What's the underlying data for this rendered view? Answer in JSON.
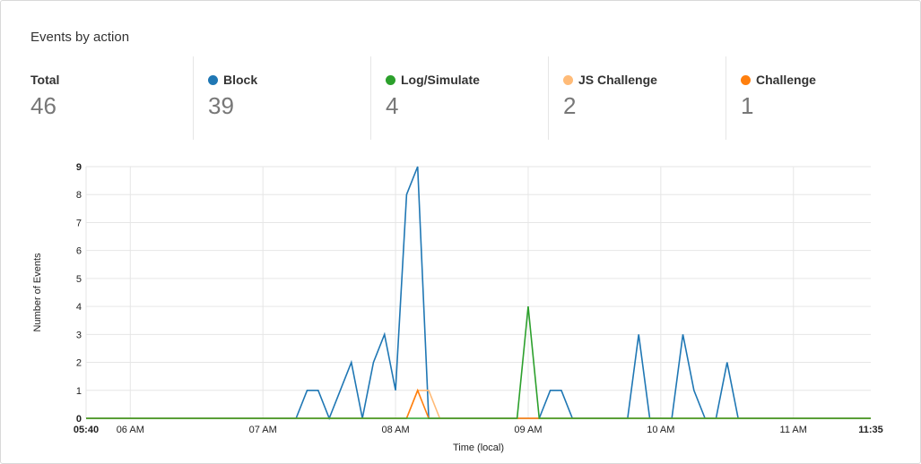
{
  "title": "Events by action",
  "stats": [
    {
      "label": "Total",
      "value": "46",
      "color": null
    },
    {
      "label": "Block",
      "value": "39",
      "color": "#1f77b4"
    },
    {
      "label": "Log/Simulate",
      "value": "4",
      "color": "#2ca02c"
    },
    {
      "label": "JS Challenge",
      "value": "2",
      "color": "#ffbb78"
    },
    {
      "label": "Challenge",
      "value": "1",
      "color": "#ff7f0e"
    }
  ],
  "chart_data": {
    "type": "line",
    "xlabel": "Time (local)",
    "ylabel": "Number of Events",
    "xlim": [
      "05:40",
      "11:35"
    ],
    "ylim": [
      0,
      9
    ],
    "x_ticks": [
      {
        "t": "05:40",
        "label": "05:40",
        "bold": true
      },
      {
        "t": "06:00",
        "label": "06 AM"
      },
      {
        "t": "07:00",
        "label": "07 AM"
      },
      {
        "t": "08:00",
        "label": "08 AM"
      },
      {
        "t": "09:00",
        "label": "09 AM"
      },
      {
        "t": "10:00",
        "label": "10 AM"
      },
      {
        "t": "11:00",
        "label": "11 AM"
      },
      {
        "t": "11:35",
        "label": "11:35",
        "bold": true
      }
    ],
    "y_ticks": [
      "0",
      "1",
      "2",
      "3",
      "4",
      "5",
      "6",
      "7",
      "8",
      "9"
    ],
    "grid": true,
    "series": [
      {
        "name": "Block",
        "color": "#1f77b4",
        "points": [
          [
            "07:20",
            1
          ],
          [
            "07:25",
            1
          ],
          [
            "07:35",
            1
          ],
          [
            "07:40",
            2
          ],
          [
            "07:50",
            2
          ],
          [
            "07:55",
            3
          ],
          [
            "08:00",
            1
          ],
          [
            "08:05",
            8
          ],
          [
            "08:10",
            9
          ],
          [
            "09:10",
            1
          ],
          [
            "09:15",
            1
          ],
          [
            "09:50",
            3
          ],
          [
            "10:10",
            3
          ],
          [
            "10:15",
            1
          ],
          [
            "10:30",
            2
          ]
        ]
      },
      {
        "name": "JS Challenge",
        "color": "#ffbb78",
        "points": [
          [
            "08:10",
            1
          ],
          [
            "08:15",
            1
          ]
        ]
      },
      {
        "name": "Challenge",
        "color": "#ff7f0e",
        "points": [
          [
            "08:10",
            1
          ]
        ]
      },
      {
        "name": "Log/Simulate",
        "color": "#2ca02c",
        "points": [
          [
            "09:00",
            4
          ]
        ]
      }
    ]
  }
}
